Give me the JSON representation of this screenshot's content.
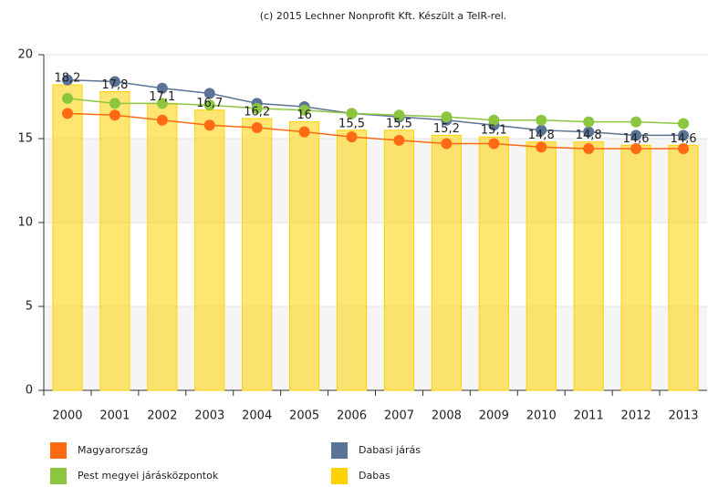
{
  "chart_data": {
    "type": "combo",
    "subtitle": "(c) 2015 Lechner Nonprofit Kft. Készült a TeIR-rel.",
    "categories": [
      "2000",
      "2001",
      "2002",
      "2003",
      "2004",
      "2005",
      "2006",
      "2007",
      "2008",
      "2009",
      "2010",
      "2011",
      "2012",
      "2013"
    ],
    "ylim": [
      0,
      20
    ],
    "yticks": [
      0,
      5,
      10,
      15,
      20
    ],
    "grid": true,
    "series": [
      {
        "name": "Magyarország",
        "type": "line",
        "color": "#ff6a13",
        "values": [
          16.5,
          16.4,
          16.1,
          15.8,
          15.65,
          15.4,
          15.1,
          14.9,
          14.7,
          14.7,
          14.5,
          14.4,
          14.4,
          14.4
        ]
      },
      {
        "name": "Dabasi járás",
        "type": "line",
        "color": "#5a7396",
        "values": [
          18.5,
          18.4,
          18.0,
          17.7,
          17.1,
          16.9,
          16.5,
          16.3,
          16.1,
          15.8,
          15.5,
          15.4,
          15.2,
          15.2
        ]
      },
      {
        "name": "Pest megyei járásközpontok",
        "type": "line",
        "color": "#8cc63f",
        "values": [
          17.4,
          17.1,
          17.1,
          17.0,
          16.8,
          16.7,
          16.5,
          16.4,
          16.3,
          16.1,
          16.1,
          16.0,
          16.0,
          15.9
        ]
      },
      {
        "name": "Dabas",
        "type": "bar",
        "color": "#ffd200",
        "values": [
          18.2,
          17.8,
          17.1,
          16.7,
          16.2,
          16,
          15.5,
          15.5,
          15.2,
          15.1,
          14.8,
          14.8,
          14.6,
          14.6
        ],
        "value_labels": [
          "18,2",
          "17,8",
          "17,1",
          "16,7",
          "16,2",
          "16",
          "15,5",
          "15,5",
          "15,2",
          "15,1",
          "14,8",
          "14,8",
          "14,6",
          "14,6"
        ]
      }
    ]
  }
}
